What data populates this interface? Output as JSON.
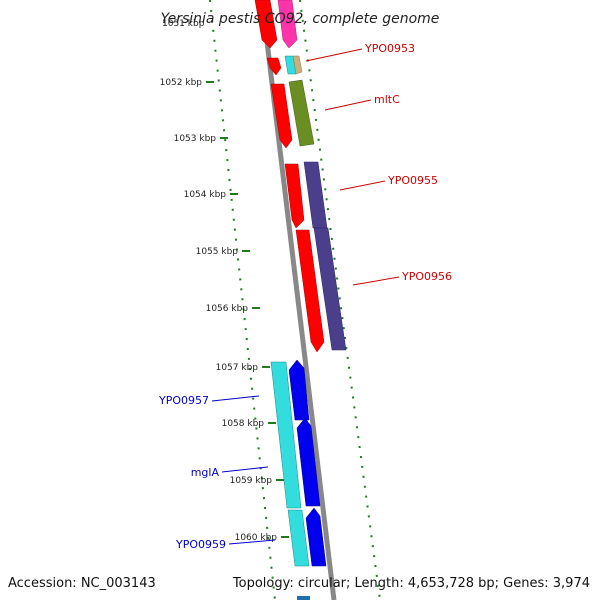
{
  "title": "Yersinia pestis CO92, complete genome",
  "title_fragment": "1051 kbp",
  "footer": {
    "accession": "Accession: NC_003143",
    "topology": "Topology: circular; Length: 4,653,728 bp; Genes: 3,974"
  },
  "colors": {
    "backbone": "#888888",
    "tick": "#1e7b1e",
    "label_forward": "#cc0000",
    "label_reverse": "#0000cc",
    "red": "#ff0000",
    "pink": "#ff33aa",
    "cyan": "#33dddd",
    "blue": "#0000ee",
    "olive": "#6b8e23",
    "purple": "#4b3f8c",
    "tan": "#c8b07a"
  },
  "ticks": [
    {
      "kbp": 1052,
      "label": "1052 kbp"
    },
    {
      "kbp": 1053,
      "label": "1053 kbp"
    },
    {
      "kbp": 1054,
      "label": "1054 kbp"
    },
    {
      "kbp": 1055,
      "label": "1055 kbp"
    },
    {
      "kbp": 1056,
      "label": "1056 kbp"
    },
    {
      "kbp": 1057,
      "label": "1057 kbp"
    },
    {
      "kbp": 1058,
      "label": "1058 kbp"
    },
    {
      "kbp": 1059,
      "label": "1059 kbp"
    },
    {
      "kbp": 1060,
      "label": "1060 kbp"
    }
  ],
  "gene_labels": [
    {
      "name": "YPO0953",
      "strand": "forward"
    },
    {
      "name": "mltC",
      "strand": "forward"
    },
    {
      "name": "YPO0955",
      "strand": "forward"
    },
    {
      "name": "YPO0956",
      "strand": "forward"
    },
    {
      "name": "YPO0957",
      "strand": "reverse"
    },
    {
      "name": "mglA",
      "strand": "reverse"
    },
    {
      "name": "YPO0959",
      "strand": "reverse"
    }
  ]
}
